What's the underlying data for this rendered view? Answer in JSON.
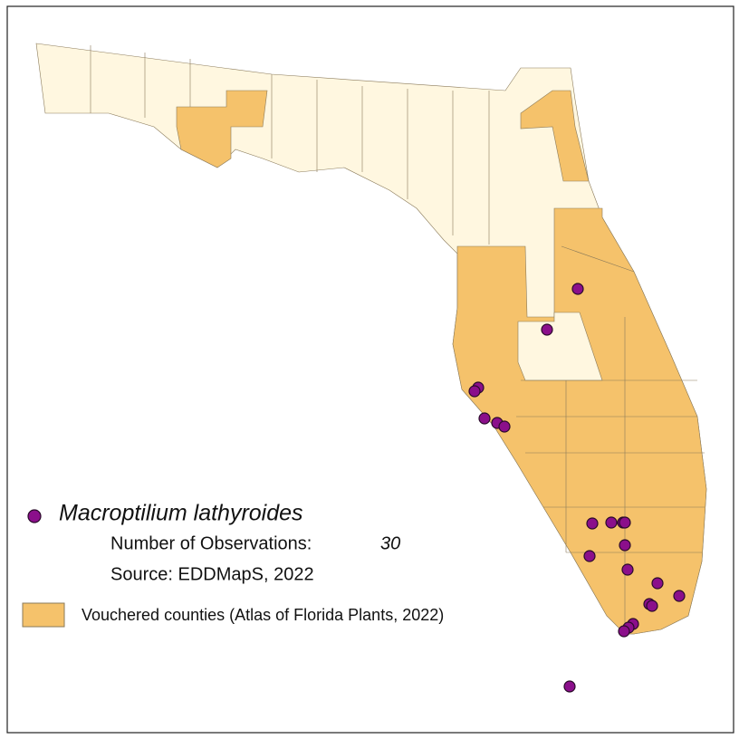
{
  "legend": {
    "species": "Macroptilium lathyroides",
    "observations_label": "Number of Observations:",
    "observations_count": 30,
    "source": "Source: EDDMapS, 2022",
    "vouchered": "Vouchered counties (Atlas of Florida Plants, 2022)"
  }
}
